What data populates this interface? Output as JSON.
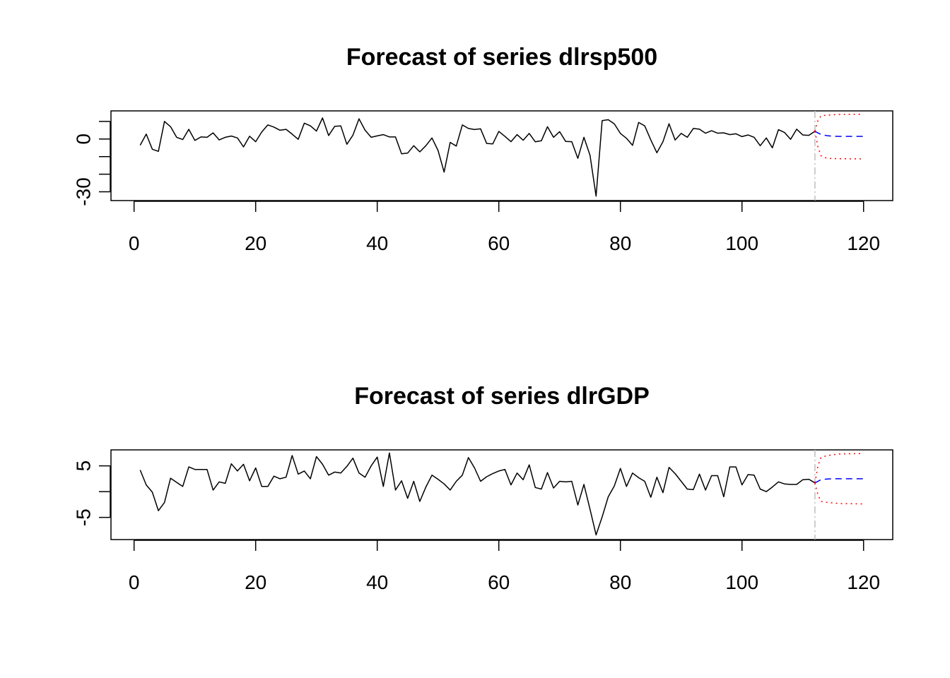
{
  "chart_data": [
    {
      "type": "line",
      "title": "Forecast of series dlrsp500",
      "xlabel": "",
      "ylabel": "",
      "xlim": [
        -3.8,
        124.8
      ],
      "ylim": [
        -35,
        16
      ],
      "xticks": [
        0,
        20,
        40,
        60,
        80,
        100,
        120
      ],
      "yticks": [
        -30,
        -20,
        -10,
        0,
        10
      ],
      "ytick_labels": [
        "-30",
        "",
        "",
        "0",
        ""
      ],
      "forecast_origin": 112,
      "colors": {
        "history": "#000000",
        "forecast": "#0000ff",
        "interval": "#ff0000",
        "origin": "#bebebe"
      },
      "series": [
        {
          "role": "history",
          "x_start": 1,
          "values": [
            -3.5,
            2.8,
            -5.8,
            -7,
            10,
            7,
            1,
            -0.3,
            5.5,
            -0.8,
            1.2,
            1,
            3.5,
            -0.5,
            1,
            1.7,
            0.6,
            -4.5,
            1.6,
            -1.5,
            4,
            8,
            6.8,
            5,
            5.5,
            2.8,
            -0.2,
            9,
            7.5,
            4.5,
            12,
            2,
            7.2,
            7.5,
            -3,
            2.2,
            11.5,
            5,
            1,
            1.8,
            2.5,
            1.2,
            1.2,
            -8.4,
            -8,
            -3.8,
            -7.3,
            -3.8,
            0.6,
            -6.5,
            -18.8,
            -1.9,
            -4,
            8,
            6,
            5.4,
            5.8,
            -2.5,
            -2.8,
            4.3,
            1.5,
            -1.5,
            2.5,
            -0.7,
            3.2,
            -1.6,
            -1,
            7,
            1,
            4.2,
            -1.4,
            -1.5,
            -11,
            1,
            -9.2,
            -32.5,
            10.5,
            11,
            8.6,
            3.2,
            0.4,
            -3.6,
            9.4,
            7.5,
            -0.5,
            -7.8,
            -1.5,
            8.7,
            -0.6,
            3.2,
            1,
            6,
            5.6,
            3.3,
            4.7,
            3.3,
            3.5,
            2.5,
            3,
            1.4,
            2.3,
            1,
            -3.8,
            0.6,
            -5,
            5.3,
            3.7,
            -0.2,
            5.6,
            2.3,
            2.1,
            4.4
          ]
        },
        {
          "role": "forecast",
          "x": [
            112,
            113,
            114,
            115,
            116,
            117,
            118,
            119,
            120
          ],
          "values": [
            4.4,
            2.6,
            1.9,
            1.6,
            1.5,
            1.5,
            1.5,
            1.5,
            1.5
          ]
        },
        {
          "role": "upper",
          "x": [
            112,
            112.5,
            113,
            114,
            116,
            120
          ],
          "values": [
            4.4,
            10.5,
            13.2,
            13.6,
            14,
            14.1
          ]
        },
        {
          "role": "lower",
          "x": [
            112,
            112.5,
            113,
            114,
            116,
            120
          ],
          "values": [
            4.4,
            -4.5,
            -9.5,
            -11,
            -11.2,
            -11.3
          ]
        }
      ]
    },
    {
      "type": "line",
      "title": "Forecast of series dlrGDP",
      "xlabel": "",
      "ylabel": "",
      "xlim": [
        -3.8,
        124.8
      ],
      "ylim": [
        -9.3,
        8.1
      ],
      "xticks": [
        0,
        20,
        40,
        60,
        80,
        100,
        120
      ],
      "yticks": [
        -5,
        0,
        5
      ],
      "ytick_labels": [
        "-5",
        "",
        "5"
      ],
      "forecast_origin": 112,
      "colors": {
        "history": "#000000",
        "forecast": "#0000ff",
        "interval": "#ff0000",
        "origin": "#bebebe"
      },
      "series": [
        {
          "role": "history",
          "x_start": 1,
          "values": [
            4.2,
            1.3,
            -0.1,
            -3.7,
            -2.1,
            2.6,
            1.8,
            1,
            4.8,
            4.3,
            4.3,
            4.3,
            0.3,
            1.9,
            1.6,
            5.4,
            4,
            5.3,
            2.1,
            4.6,
            1,
            1,
            3,
            2.5,
            2.8,
            7,
            3.4,
            4,
            2.5,
            6.8,
            5.3,
            3.2,
            3.8,
            3.6,
            4.9,
            6.5,
            3.6,
            2.8,
            5,
            6.7,
            1,
            7.5,
            0.3,
            2.1,
            -1.3,
            2,
            -1.9,
            0.9,
            3.2,
            2.4,
            1.5,
            0.3,
            2,
            3.2,
            6.6,
            4.6,
            2,
            2.9,
            3.5,
            4,
            4.3,
            1.3,
            3.6,
            2.3,
            5.2,
            0.8,
            0.5,
            3.7,
            0.7,
            2,
            1.9,
            2,
            -2.6,
            1.4,
            -3.4,
            -8.4,
            -4.9,
            -1,
            1.1,
            4.5,
            1,
            3.6,
            2.7,
            2,
            -1.1,
            2.8,
            -0.2,
            4.7,
            3.5,
            2,
            0.5,
            0.4,
            3.4,
            0.3,
            3.1,
            3.1,
            -1,
            4.8,
            4.8,
            1.3,
            3.3,
            3.2,
            0.5,
            0,
            0.9,
            1.9,
            1.5,
            1.4,
            1.4,
            2.3,
            2.4,
            1.7
          ]
        },
        {
          "role": "forecast",
          "x": [
            112,
            113,
            114,
            115,
            116,
            117,
            118,
            119,
            120
          ],
          "values": [
            1.7,
            2.3,
            2.45,
            2.5,
            2.5,
            2.5,
            2.5,
            2.5,
            2.5
          ]
        },
        {
          "role": "upper",
          "x": [
            112,
            112.5,
            113,
            114,
            116,
            120
          ],
          "values": [
            1.7,
            5,
            6.6,
            7,
            7.3,
            7.4
          ]
        },
        {
          "role": "lower",
          "x": [
            112,
            112.5,
            113,
            114,
            116,
            120
          ],
          "values": [
            1.7,
            -0.6,
            -1.9,
            -2.1,
            -2.3,
            -2.4
          ]
        }
      ]
    }
  ]
}
